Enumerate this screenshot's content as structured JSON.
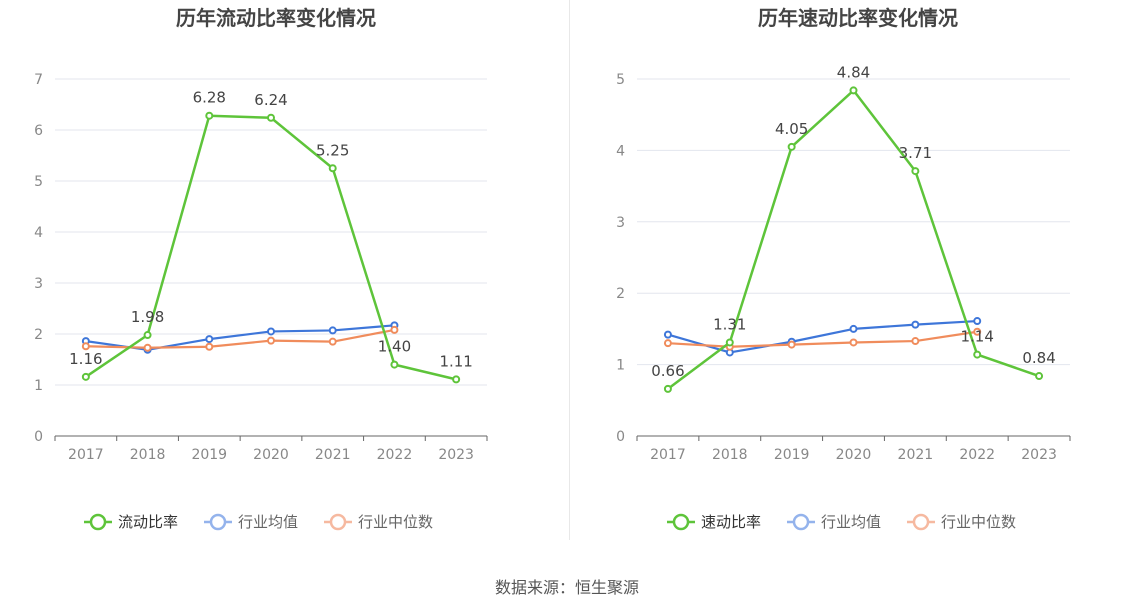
{
  "source_text": "数据来源：恒生聚源",
  "colors": {
    "main": "#5ec43a",
    "avg": "#3e76d9",
    "median": "#f08c5c",
    "avg_legend": "#94b3ec",
    "median_legend": "#f6b9a0",
    "grid": "#e3e6ee",
    "axis": "#666666",
    "tick": "#888888",
    "title": "#444444",
    "label": "#444444"
  },
  "chart_data": [
    {
      "type": "line",
      "title": "历年流动比率变化情况",
      "categories": [
        "2017",
        "2018",
        "2019",
        "2020",
        "2021",
        "2022",
        "2023"
      ],
      "ylim": [
        0,
        7
      ],
      "yticks": [
        "0",
        "1",
        "2",
        "3",
        "4",
        "5",
        "6",
        "7"
      ],
      "grid": true,
      "legend_position": "bottom",
      "series": [
        {
          "name": "流动比率",
          "role": "main",
          "values": [
            1.16,
            1.98,
            6.28,
            6.24,
            5.25,
            1.4,
            1.11
          ],
          "labels": [
            "1.16",
            "1.98",
            "6.28",
            "6.24",
            "5.25",
            "1.40",
            "1.11"
          ]
        },
        {
          "name": "行业均值",
          "role": "avg",
          "values": [
            1.86,
            1.69,
            1.9,
            2.05,
            2.07,
            2.17,
            null
          ]
        },
        {
          "name": "行业中位数",
          "role": "median",
          "values": [
            1.76,
            1.73,
            1.75,
            1.87,
            1.85,
            2.08,
            null
          ]
        }
      ]
    },
    {
      "type": "line",
      "title": "历年速动比率变化情况",
      "categories": [
        "2017",
        "2018",
        "2019",
        "2020",
        "2021",
        "2022",
        "2023"
      ],
      "ylim": [
        0,
        5
      ],
      "yticks": [
        "0",
        "1",
        "2",
        "3",
        "4",
        "5"
      ],
      "grid": true,
      "legend_position": "bottom",
      "series": [
        {
          "name": "速动比率",
          "role": "main",
          "values": [
            0.66,
            1.31,
            4.05,
            4.84,
            3.71,
            1.14,
            0.84
          ],
          "labels": [
            "0.66",
            "1.31",
            "4.05",
            "4.84",
            "3.71",
            "1.14",
            "0.84"
          ]
        },
        {
          "name": "行业均值",
          "role": "avg",
          "values": [
            1.42,
            1.17,
            1.32,
            1.5,
            1.56,
            1.61,
            null
          ]
        },
        {
          "name": "行业中位数",
          "role": "median",
          "values": [
            1.3,
            1.25,
            1.28,
            1.31,
            1.33,
            1.46,
            null
          ]
        }
      ]
    }
  ]
}
